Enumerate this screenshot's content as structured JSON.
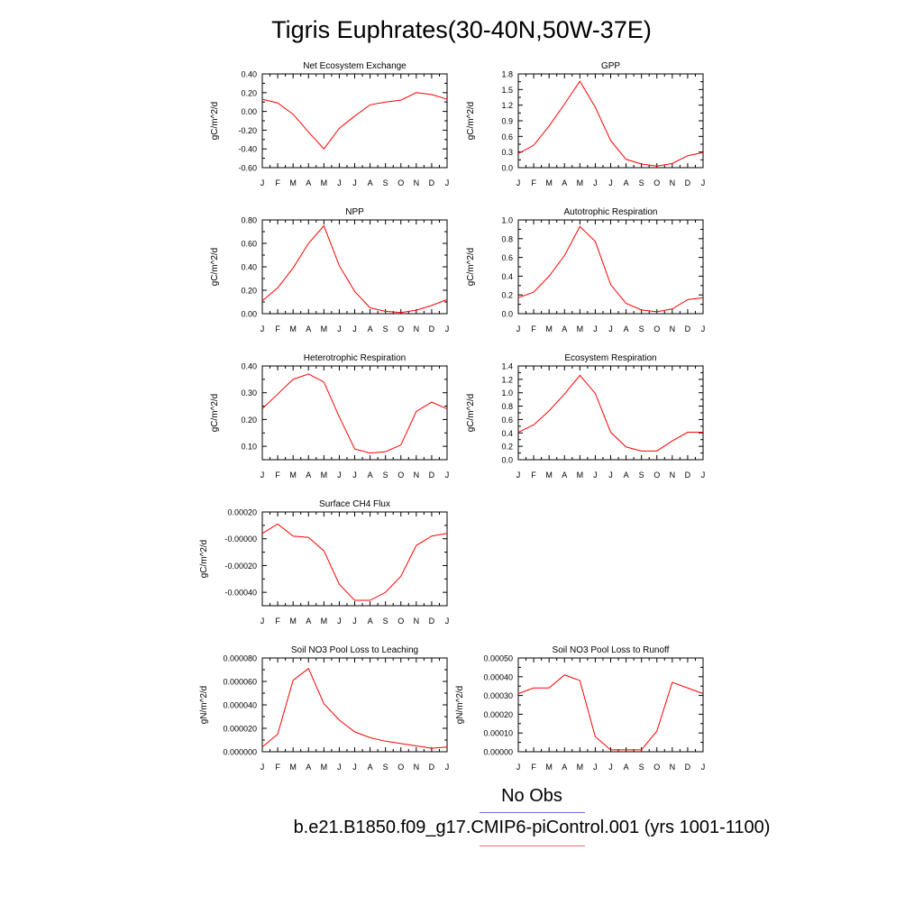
{
  "title": "Tigris Euphrates(30-40N,50W-37E)",
  "legend": {
    "obs_label": "No Obs",
    "obs_color": "#6e6ef0",
    "model_label": "b.e21.B1850.f09_g17.CMIP6-piControl.001 (yrs 1001-1100)",
    "model_color": "#f07070"
  },
  "line_color": "#ff0000",
  "chart_data": [
    {
      "type": "line",
      "title": "Net Ecosystem Exchange",
      "ylabel": "gC/m^2/d",
      "categories": [
        "J",
        "F",
        "M",
        "A",
        "M",
        "J",
        "J",
        "A",
        "S",
        "O",
        "N",
        "D",
        "J"
      ],
      "ylim": [
        -0.6,
        0.4
      ],
      "yticks": [
        -0.6,
        -0.4,
        -0.2,
        0.0,
        0.2,
        0.4
      ],
      "yticklabels": [
        "-0.60",
        "-0.40",
        "-0.20",
        "0.00",
        "0.20",
        "0.40"
      ],
      "series": [
        {
          "values": [
            0.13,
            0.09,
            -0.03,
            -0.22,
            -0.4,
            -0.18,
            -0.05,
            0.07,
            0.1,
            0.12,
            0.2,
            0.18,
            0.13
          ]
        }
      ]
    },
    {
      "type": "line",
      "title": "GPP",
      "ylabel": "gC/m^2/d",
      "categories": [
        "J",
        "F",
        "M",
        "A",
        "M",
        "J",
        "J",
        "A",
        "S",
        "O",
        "N",
        "D",
        "J"
      ],
      "ylim": [
        0.0,
        1.8
      ],
      "yticks": [
        0.0,
        0.3,
        0.6,
        0.9,
        1.2,
        1.5,
        1.8
      ],
      "yticklabels": [
        "0.0",
        "0.3",
        "0.6",
        "0.9",
        "1.2",
        "1.5",
        "1.8"
      ],
      "series": [
        {
          "values": [
            0.27,
            0.43,
            0.8,
            1.22,
            1.66,
            1.16,
            0.52,
            0.16,
            0.07,
            0.03,
            0.08,
            0.23,
            0.29
          ]
        }
      ]
    },
    {
      "type": "line",
      "title": "NPP",
      "ylabel": "gC/m^2/d",
      "categories": [
        "J",
        "F",
        "M",
        "A",
        "M",
        "J",
        "J",
        "A",
        "S",
        "O",
        "N",
        "D",
        "J"
      ],
      "ylim": [
        0.0,
        0.8
      ],
      "yticks": [
        0.0,
        0.2,
        0.4,
        0.6,
        0.8
      ],
      "yticklabels": [
        "0.00",
        "0.20",
        "0.40",
        "0.60",
        "0.80"
      ],
      "series": [
        {
          "values": [
            0.11,
            0.22,
            0.39,
            0.6,
            0.75,
            0.41,
            0.19,
            0.05,
            0.02,
            0.01,
            0.03,
            0.07,
            0.12
          ]
        }
      ]
    },
    {
      "type": "line",
      "title": "Autotrophic Respiration",
      "ylabel": "gC/m^2/d",
      "categories": [
        "J",
        "F",
        "M",
        "A",
        "M",
        "J",
        "J",
        "A",
        "S",
        "O",
        "N",
        "D",
        "J"
      ],
      "ylim": [
        0.0,
        1.0
      ],
      "yticks": [
        0.0,
        0.2,
        0.4,
        0.6,
        0.8,
        1.0
      ],
      "yticklabels": [
        "0.0",
        "0.2",
        "0.4",
        "0.6",
        "0.8",
        "1.0"
      ],
      "series": [
        {
          "values": [
            0.17,
            0.23,
            0.4,
            0.62,
            0.93,
            0.77,
            0.31,
            0.11,
            0.04,
            0.02,
            0.05,
            0.15,
            0.17
          ]
        }
      ]
    },
    {
      "type": "line",
      "title": "Heterotrophic Respiration",
      "ylabel": "gC/m^2/d",
      "categories": [
        "J",
        "F",
        "M",
        "A",
        "M",
        "J",
        "J",
        "A",
        "S",
        "O",
        "N",
        "D",
        "J"
      ],
      "ylim": [
        0.05,
        0.4
      ],
      "yticks": [
        0.1,
        0.2,
        0.3,
        0.4
      ],
      "yticklabels": [
        "0.10",
        "0.20",
        "0.30",
        "0.40"
      ],
      "series": [
        {
          "values": [
            0.24,
            0.295,
            0.35,
            0.37,
            0.34,
            0.21,
            0.09,
            0.075,
            0.08,
            0.105,
            0.23,
            0.265,
            0.24
          ]
        }
      ]
    },
    {
      "type": "line",
      "title": "Ecosystem Respiration",
      "ylabel": "gC/m^2/d",
      "categories": [
        "J",
        "F",
        "M",
        "A",
        "M",
        "J",
        "J",
        "A",
        "S",
        "O",
        "N",
        "D",
        "J"
      ],
      "ylim": [
        0.0,
        1.4
      ],
      "yticks": [
        0.0,
        0.2,
        0.4,
        0.6,
        0.8,
        1.0,
        1.2,
        1.4
      ],
      "yticklabels": [
        "0.0",
        "0.2",
        "0.4",
        "0.6",
        "0.8",
        "1.0",
        "1.2",
        "1.4"
      ],
      "series": [
        {
          "values": [
            0.41,
            0.52,
            0.73,
            0.98,
            1.26,
            0.99,
            0.41,
            0.19,
            0.13,
            0.13,
            0.28,
            0.41,
            0.41
          ]
        }
      ]
    },
    {
      "type": "line",
      "title": "Surface CH4 Flux",
      "ylabel": "gC/m^2/d",
      "categories": [
        "J",
        "F",
        "M",
        "A",
        "M",
        "J",
        "J",
        "A",
        "S",
        "O",
        "N",
        "D",
        "J"
      ],
      "ylim": [
        -0.0005,
        0.0002
      ],
      "yticks": [
        -0.0004,
        -0.0002,
        0.0,
        0.0002
      ],
      "yticklabels": [
        "-0.00040",
        "-0.00020",
        "-0.00000",
        "0.00020"
      ],
      "series": [
        {
          "values": [
            4e-05,
            0.00011,
            2e-05,
            1e-05,
            -9e-05,
            -0.00034,
            -0.00046,
            -0.00046,
            -0.0004,
            -0.00028,
            -5e-05,
            2e-05,
            4e-05
          ]
        }
      ]
    },
    {
      "type": "line",
      "title": "Soil NO3 Pool Loss to Leaching",
      "ylabel": "gN/m^2/d",
      "categories": [
        "J",
        "F",
        "M",
        "A",
        "M",
        "J",
        "J",
        "A",
        "S",
        "O",
        "N",
        "D",
        "J"
      ],
      "ylim": [
        0.0,
        8e-05
      ],
      "yticks": [
        0.0,
        2e-05,
        4e-05,
        6e-05,
        8e-05
      ],
      "yticklabels": [
        "0.000000",
        "0.000020",
        "0.000040",
        "0.000060",
        "0.000080"
      ],
      "series": [
        {
          "values": [
            4e-06,
            1.5e-05,
            6.1e-05,
            7.1e-05,
            4.1e-05,
            2.7e-05,
            1.7e-05,
            1.2e-05,
            9e-06,
            7e-06,
            5e-06,
            3e-06,
            4e-06
          ]
        }
      ]
    },
    {
      "type": "line",
      "title": "Soil NO3 Pool Loss to Runoff",
      "ylabel": "gN/m^2/d",
      "categories": [
        "J",
        "F",
        "M",
        "A",
        "M",
        "J",
        "J",
        "A",
        "S",
        "O",
        "N",
        "D",
        "J"
      ],
      "ylim": [
        0.0,
        0.0005
      ],
      "yticks": [
        0.0,
        0.0001,
        0.0002,
        0.0003,
        0.0004,
        0.0005
      ],
      "yticklabels": [
        "0.00000",
        "0.00010",
        "0.00020",
        "0.00030",
        "0.00040",
        "0.00050"
      ],
      "series": [
        {
          "values": [
            0.00031,
            0.00034,
            0.00034,
            0.00041,
            0.00038,
            8e-05,
            1e-05,
            1e-05,
            1e-05,
            0.00011,
            0.00037,
            0.00034,
            0.00031
          ]
        }
      ]
    }
  ]
}
